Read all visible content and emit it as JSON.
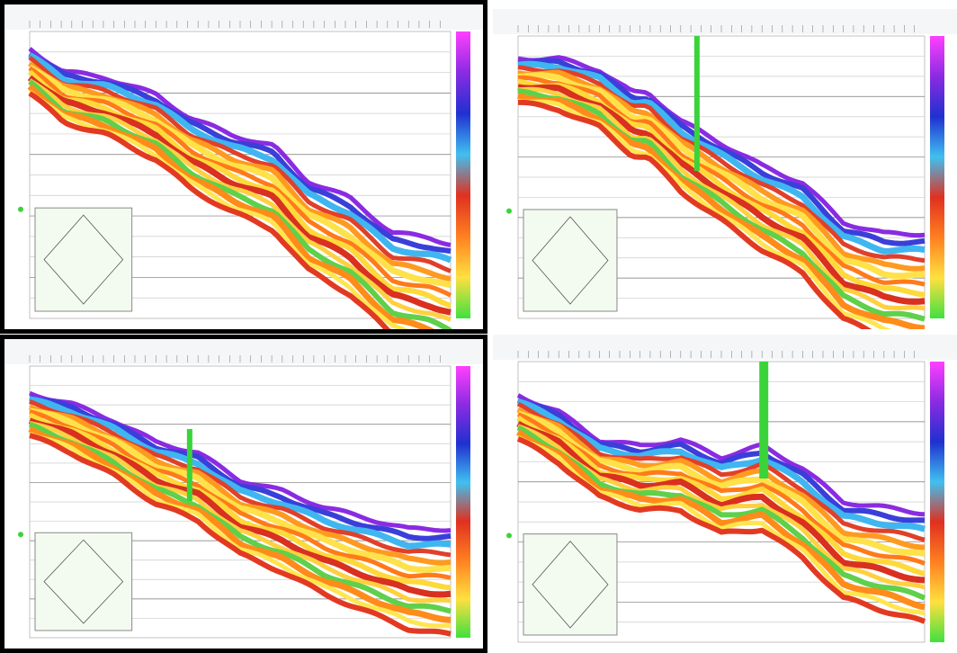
{
  "panels": [
    {
      "bordered": true
    },
    {
      "bordered": false
    },
    {
      "bordered": true
    },
    {
      "bordered": false
    }
  ]
}
